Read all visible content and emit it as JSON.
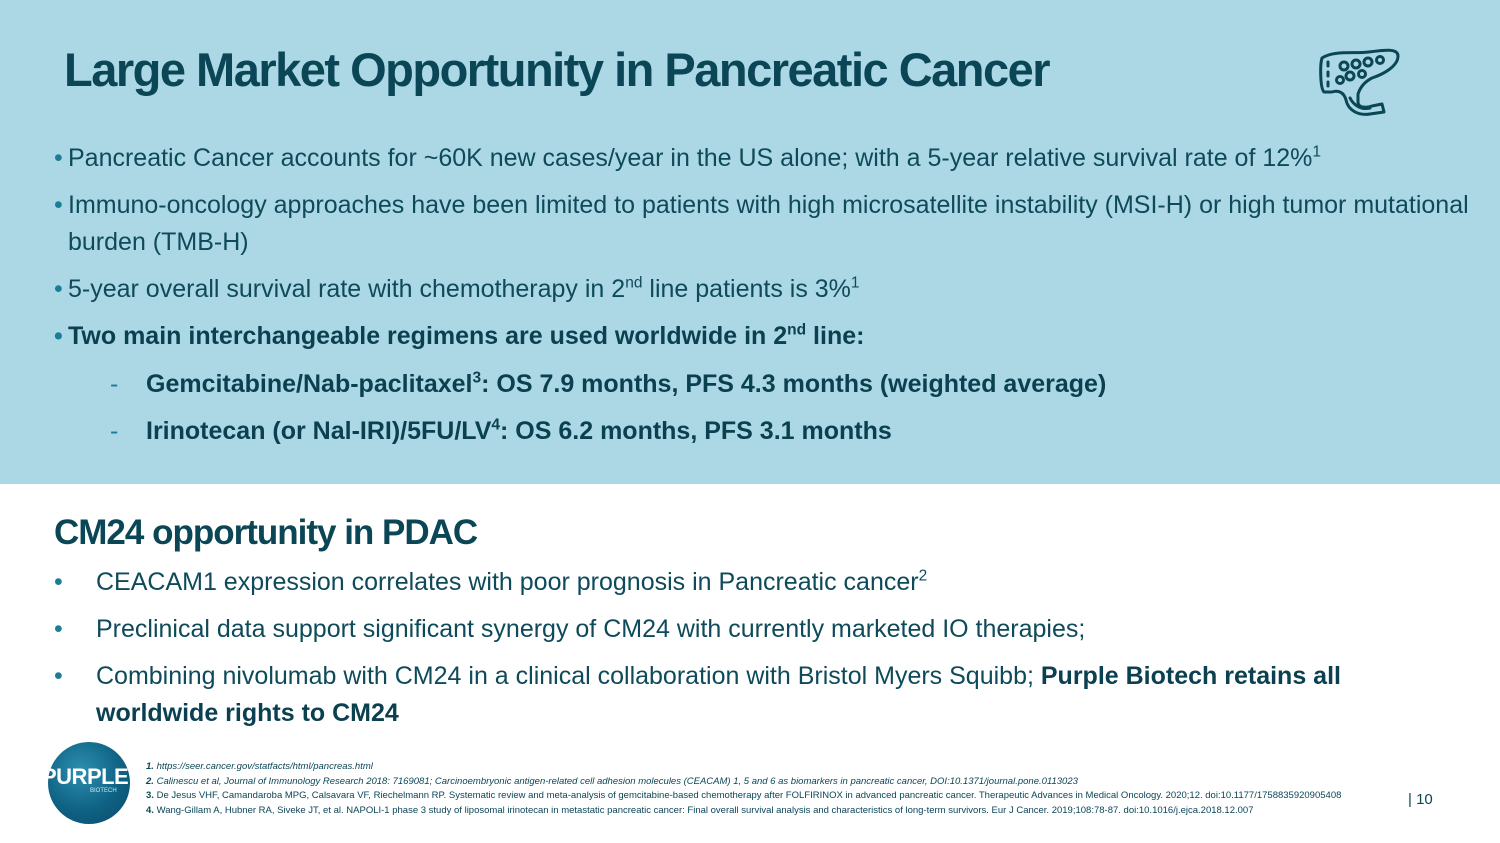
{
  "header": {
    "title": "Large Market Opportunity in Pancreatic Cancer"
  },
  "top_bullets": [
    {
      "text": "Pancreatic Cancer accounts for ~60K new cases/year in the US alone; with a 5-year relative survival rate of 12%",
      "sup": "1"
    },
    {
      "text": "Immuno-oncology approaches have been limited to patients with high microsatellite instability (MSI-H) or high tumor mutational burden (TMB-H)",
      "sup": ""
    },
    {
      "pre": "5-year overall survival rate with chemotherapy in 2",
      "sup_mid": "nd",
      "post": " line patients is 3%",
      "sup": "1"
    },
    {
      "pre": "Two main interchangeable regimens are used worldwide in 2",
      "sup_mid": "nd",
      "post": "  line:"
    }
  ],
  "sub_bullets": [
    {
      "pre": "Gemcitabine/Nab-paclitaxel",
      "sup": "3",
      "post": ":  OS 7.9 months, PFS 4.3 months (weighted average)"
    },
    {
      "pre": "Irinotecan (or Nal-IRI)/5FU/LV",
      "sup": "4",
      "post": ": OS 6.2 months, PFS 3.1 months"
    }
  ],
  "section": {
    "title": "CM24 opportunity in PDAC",
    "bullets": [
      {
        "text": "CEACAM1 expression correlates with poor prognosis in Pancreatic cancer",
        "sup": "2"
      },
      {
        "text": "Preclinical data support significant synergy of CM24 with currently marketed IO therapies;",
        "sup": ""
      },
      {
        "text": "Combining nivolumab with CM24 in a clinical collaboration with Bristol Myers Squibb; ",
        "bold": "Purple Biotech retains all worldwide rights to CM24"
      }
    ]
  },
  "logo": {
    "text": "PURPLE",
    "sub": "BIOTECH"
  },
  "references": [
    {
      "num": "1.",
      "text": " https://seer.cancer.gov/statfacts/html/pancreas.html"
    },
    {
      "num": "2.",
      "text": " Calinescu et al, Journal of Immunology Research 2018: 7169081; Carcinoembryonic antigen-related cell adhesion molecules (CEACAM) 1, 5 and 6 as biomarkers in pancreatic cancer, DOI:10.1371/journal.pone.0113023"
    },
    {
      "num": "3.",
      "text": " De Jesus VHF, Camandaroba MPG, Calsavara VF, Riechelmann RP. Systematic review and meta-analysis of gemcitabine-based chemotherapy after FOLFIRINOX in advanced pancreatic cancer. Therapeutic Advances in Medical Oncology. 2020;12. doi:10.1177/1758835920905408"
    },
    {
      "num": "4.",
      "text": " Wang-Gillam A, Hubner RA, Siveke JT, et al. NAPOLI-1 phase 3 study of liposomal irinotecan in metastatic pancreatic cancer: Final overall survival analysis and characteristics of long-term survivors. Eur J Cancer. 2019;108:78-87. doi:10.1016/j.ejca.2018.12.007"
    }
  ],
  "page_number": "| 10",
  "icons": {
    "organ": "pancreas-icon"
  },
  "colors": {
    "panel": "#acd8e5",
    "title": "#0b4656",
    "bullet": "#1c7d97"
  }
}
